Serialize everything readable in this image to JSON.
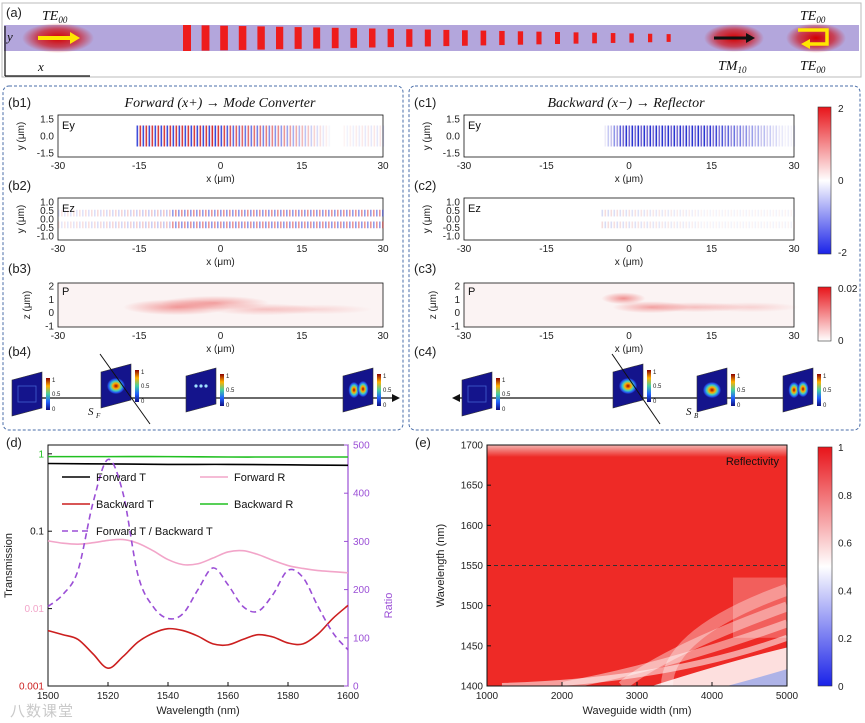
{
  "panel_a": {
    "label": "(a)",
    "y_axis": "y",
    "x_axis": "x",
    "input_mode": "TE",
    "input_mode_sub": "00",
    "converted_mode": "TM",
    "converted_mode_sub": "10",
    "forward_out_mode": "TE",
    "forward_out_sub": "00",
    "reflected_mode": "TE",
    "reflected_sub": "00"
  },
  "panel_b": {
    "title": "Forward (x+) → Mode Converter",
    "b1": {
      "label": "(b1)",
      "field": "Ey",
      "ylabel": "y (μm)",
      "yticks": [
        "1.5",
        "0.0",
        "-1.5"
      ]
    },
    "b2": {
      "label": "(b2)",
      "field": "Ez",
      "ylabel": "y (μm)",
      "yticks": [
        "1.0",
        "0.5",
        "0.0",
        "-0.5",
        "-1.0"
      ]
    },
    "b3": {
      "label": "(b3)",
      "field": "P",
      "ylabel": "z (μm)",
      "yticks": [
        "2",
        "1",
        "0",
        "-1"
      ]
    },
    "b4": {
      "label": "(b4)",
      "monitor": "S",
      "monitor_sub": "F"
    },
    "xlabel": "x (μm)",
    "xticks": [
      "-30",
      "-15",
      "0",
      "15",
      "30"
    ]
  },
  "panel_c": {
    "title": "Backward (x−) → Reflector",
    "c1": {
      "label": "(c1)",
      "field": "Ey",
      "ylabel": "y (μm)",
      "yticks": [
        "1.5",
        "0.0",
        "-1.5"
      ]
    },
    "c2": {
      "label": "(c2)",
      "field": "Ez",
      "ylabel": "y (μm)",
      "yticks": [
        "1.0",
        "0.5",
        "0.0",
        "-0.5",
        "-1.0"
      ]
    },
    "c3": {
      "label": "(c3)",
      "field": "P",
      "ylabel": "z (μm)",
      "yticks": [
        "2",
        "1",
        "0",
        "-1"
      ]
    },
    "c4": {
      "label": "(c4)",
      "monitor": "S",
      "monitor_sub": "B"
    },
    "xlabel": "x (μm)",
    "xticks": [
      "-30",
      "-15",
      "0",
      "15",
      "30"
    ]
  },
  "colorbars": {
    "field": {
      "max": "2",
      "zero": "0",
      "min": "-2"
    },
    "power": {
      "max": "0.02",
      "min": "0"
    },
    "mode_ticks": [
      "1",
      "0.5",
      "0"
    ]
  },
  "panel_d": {
    "label": "(d)"
  },
  "panel_e": {
    "label": "(e)"
  },
  "watermark": "八数课堂",
  "chart_data": [
    {
      "id": "d",
      "type": "line",
      "xlabel": "Wavelength (nm)",
      "ylabel": "Transmission",
      "y2label": "Ratio",
      "xlim": [
        1500,
        1600
      ],
      "ylim_log": [
        0.001,
        1.3
      ],
      "y2lim": [
        0,
        500
      ],
      "xticks": [
        1500,
        1520,
        1540,
        1560,
        1580,
        1600
      ],
      "yticks": [
        {
          "v": 1,
          "t": "1"
        },
        {
          "v": 0.1,
          "t": "0.1"
        },
        {
          "v": 0.01,
          "t": "0.01"
        },
        {
          "v": 0.001,
          "t": "0.001"
        }
      ],
      "y2ticks": [
        0,
        100,
        200,
        300,
        400,
        500
      ],
      "legend": [
        {
          "name": "Forward T",
          "color": "#000000"
        },
        {
          "name": "Forward R",
          "color": "#f2a5c9"
        },
        {
          "name": "Backward T",
          "color": "#cc1f1f"
        },
        {
          "name": "Backward R",
          "color": "#21c021"
        },
        {
          "name": "Forward T / Backward T",
          "color": "#9b4fd6",
          "dashed": true
        }
      ],
      "series": [
        {
          "name": "Forward T",
          "axis": "left",
          "x": [
            1500,
            1520,
            1540,
            1560,
            1580,
            1600
          ],
          "y": [
            0.75,
            0.74,
            0.73,
            0.73,
            0.72,
            0.71
          ]
        },
        {
          "name": "Backward R",
          "axis": "left",
          "x": [
            1500,
            1520,
            1540,
            1560,
            1580,
            1600
          ],
          "y": [
            0.92,
            0.92,
            0.92,
            0.91,
            0.91,
            0.91
          ]
        },
        {
          "name": "Forward R",
          "axis": "left",
          "x": [
            1500,
            1505,
            1510,
            1515,
            1520,
            1525,
            1530,
            1535,
            1540,
            1545,
            1550,
            1555,
            1560,
            1565,
            1570,
            1575,
            1580,
            1585,
            1590,
            1595,
            1600
          ],
          "y": [
            0.075,
            0.07,
            0.068,
            0.071,
            0.076,
            0.078,
            0.07,
            0.056,
            0.043,
            0.037,
            0.038,
            0.045,
            0.054,
            0.056,
            0.05,
            0.042,
            0.036,
            0.033,
            0.031,
            0.03,
            0.029
          ]
        },
        {
          "name": "Backward T",
          "axis": "left",
          "x": [
            1500,
            1505,
            1510,
            1515,
            1520,
            1525,
            1530,
            1535,
            1540,
            1545,
            1550,
            1555,
            1560,
            1565,
            1570,
            1575,
            1580,
            1585,
            1590,
            1595,
            1600
          ],
          "y": [
            0.0052,
            0.0046,
            0.004,
            0.0026,
            0.0017,
            0.0024,
            0.0037,
            0.0048,
            0.0055,
            0.0052,
            0.0044,
            0.0035,
            0.0034,
            0.004,
            0.0046,
            0.0043,
            0.0036,
            0.0035,
            0.0047,
            0.0075,
            0.011
          ]
        },
        {
          "name": "Forward T / Backward T",
          "axis": "right",
          "x": [
            1500,
            1505,
            1510,
            1515,
            1520,
            1525,
            1530,
            1535,
            1540,
            1545,
            1550,
            1555,
            1560,
            1565,
            1570,
            1575,
            1580,
            1585,
            1590,
            1595,
            1600
          ],
          "y": [
            165,
            190,
            240,
            380,
            470,
            400,
            230,
            165,
            140,
            150,
            200,
            245,
            210,
            165,
            155,
            190,
            240,
            225,
            165,
            110,
            75
          ]
        }
      ]
    },
    {
      "id": "e",
      "type": "heatmap",
      "title": "Reflectivity",
      "xlabel": "Waveguide width (nm)",
      "ylabel": "Wavelength (nm)",
      "xlim": [
        1000,
        5000
      ],
      "ylim": [
        1400,
        1700
      ],
      "xticks": [
        1000,
        2000,
        3000,
        4000,
        5000
      ],
      "yticks": [
        1400,
        1450,
        1500,
        1550,
        1600,
        1650,
        1700
      ],
      "colorbar": {
        "min": 0,
        "max": 1,
        "ticks": [
          "1",
          "0.8",
          "0.6",
          "0.4",
          "0.2",
          "0"
        ]
      },
      "reference_line": {
        "wavelength": 1550,
        "style": "dashed"
      },
      "description_values": {
        "peak_reflectivity": 1.0,
        "low_region_value": 0.3
      }
    }
  ]
}
